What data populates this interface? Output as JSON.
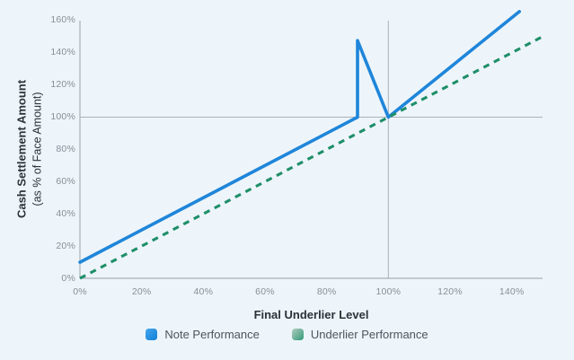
{
  "chart": {
    "y_axis": {
      "title_bold": "Cash Settlement Amount",
      "title_sub": "(as % of Face Amount)",
      "tick_labels": [
        "0%",
        "20%",
        "40%",
        "60%",
        "80%",
        "100%",
        "120%",
        "140%",
        "160%"
      ]
    },
    "x_axis": {
      "title": "Final Underlier Level",
      "tick_labels": [
        "0%",
        "20%",
        "40%",
        "60%",
        "80%",
        "100%",
        "120%",
        "140%"
      ]
    },
    "legend": [
      {
        "label": "Note Performance",
        "swatch_color": "#1f86da"
      },
      {
        "label": "Underlier Performance",
        "swatch_color": "#2f9b77"
      }
    ]
  },
  "colors": {
    "background": "#eef5fa",
    "note_line": "#1f86da",
    "underlier_line": "#1f8f69",
    "axis_line": "#a9b1b8",
    "reference_line": "#aab2b9",
    "tick_text": "#878f96",
    "title_text": "#2c3238",
    "legend_text": "#4d545b"
  },
  "chart_data": {
    "type": "line",
    "title": "",
    "xlabel": "Final Underlier Level",
    "ylabel": "Cash Settlement Amount (as % of Face Amount)",
    "xlim": [
      0,
      150
    ],
    "ylim": [
      0,
      166
    ],
    "x_ticks": [
      0,
      20,
      40,
      60,
      80,
      100,
      120,
      140
    ],
    "y_ticks": [
      0,
      20,
      40,
      60,
      80,
      100,
      120,
      140,
      160
    ],
    "grid": "off",
    "reference_lines": {
      "horizontal_y": 100,
      "vertical_x": 100
    },
    "legend_position": "bottom",
    "series": [
      {
        "name": "Note Performance",
        "style": "solid",
        "color": "#1f86da",
        "points": [
          [
            0,
            10
          ],
          [
            90,
            100
          ],
          [
            90,
            147.5
          ],
          [
            100,
            100
          ],
          [
            142.5,
            165.5
          ]
        ]
      },
      {
        "name": "Underlier Performance",
        "style": "dashed",
        "color": "#1f8f69",
        "points": [
          [
            0,
            0
          ],
          [
            150,
            150
          ]
        ]
      }
    ]
  }
}
